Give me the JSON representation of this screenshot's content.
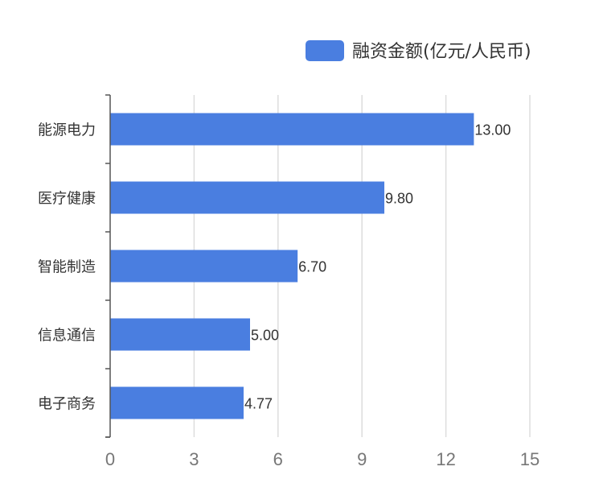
{
  "chart_data": {
    "type": "bar",
    "orientation": "horizontal",
    "categories": [
      "能源电力",
      "医疗健康",
      "智能制造",
      "信息通信",
      "电子商务"
    ],
    "series": [
      {
        "name": "融资金额(亿元/人民币)",
        "values": [
          13.0,
          9.8,
          6.7,
          5.0,
          4.77
        ],
        "color": "#4a7ee0"
      }
    ],
    "data_labels": [
      "13.00",
      "9.80",
      "6.70",
      "5.00",
      "4.77"
    ],
    "xlim": [
      0,
      15
    ],
    "x_ticks": [
      0,
      3,
      6,
      9,
      12,
      15
    ],
    "grid": "vertical",
    "legend_position": "top-right"
  }
}
